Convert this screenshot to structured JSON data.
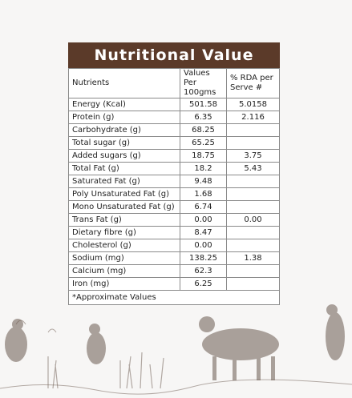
{
  "title": "Nutritional Value",
  "headers": {
    "nutrients": "Nutrients",
    "values": "Values Per 100gms",
    "rda": "% RDA per Serve #"
  },
  "rows": [
    {
      "name": "Energy (Kcal)",
      "value": "501.58",
      "rda": "5.0158"
    },
    {
      "name": "Protein (g)",
      "value": "6.35",
      "rda": "2.116"
    },
    {
      "name": "Carbohydrate (g)",
      "value": "68.25",
      "rda": ""
    },
    {
      "name": "Total sugar (g)",
      "value": "65.25",
      "rda": ""
    },
    {
      "name": "Added sugars (g)",
      "value": "18.75",
      "rda": "3.75"
    },
    {
      "name": "Total Fat (g)",
      "value": "18.2",
      "rda": "5.43"
    },
    {
      "name": "Saturated Fat (g)",
      "value": "9.48",
      "rda": ""
    },
    {
      "name": "Poly Unsaturated Fat (g)",
      "value": "1.68",
      "rda": ""
    },
    {
      "name": "Mono Unsaturated Fat (g)",
      "value": "6.74",
      "rda": ""
    },
    {
      "name": "Trans Fat  (g)",
      "value": "0.00",
      "rda": "0.00"
    },
    {
      "name": "Dietary fibre (g)",
      "value": "8.47",
      "rda": ""
    },
    {
      "name": "Cholesterol (g)",
      "value": "0.00",
      "rda": ""
    },
    {
      "name": "Sodium (mg)",
      "value": "138.25",
      "rda": "1.38"
    },
    {
      "name": "Calcium (mg)",
      "value": "62.3",
      "rda": ""
    },
    {
      "name": "Iron (mg)",
      "value": "6.25",
      "rda": ""
    }
  ],
  "footnote": "*Approximate Values",
  "colors": {
    "title_bg": "#5b3a29",
    "illustration": "#6b5a50"
  }
}
